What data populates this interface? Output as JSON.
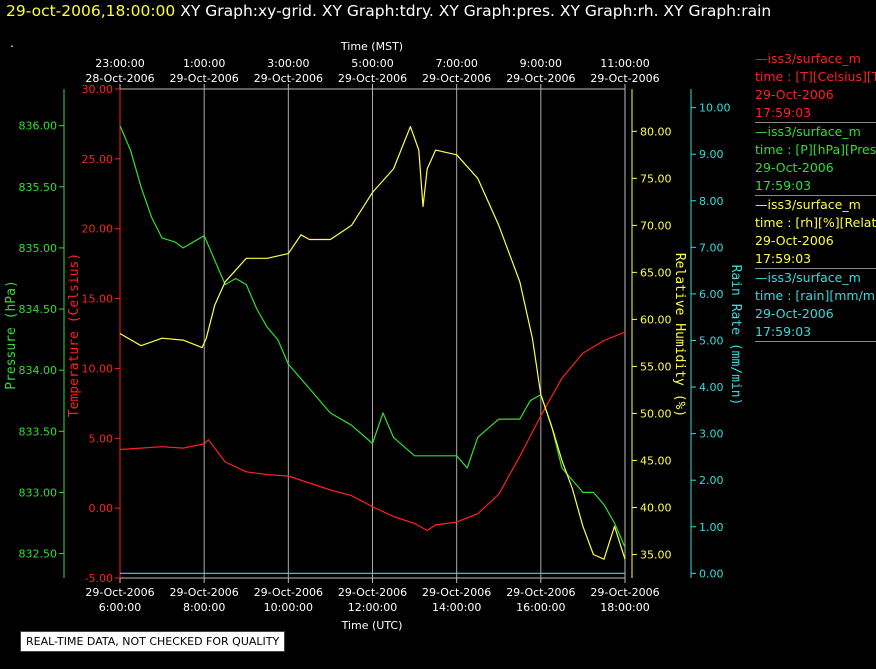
{
  "header": {
    "timestamp": "29-oct-2006,18:00:00",
    "graph_titles": "XY Graph:xy-grid.  XY Graph:tdry.  XY Graph:pres.  XY Graph:rh.  XY Graph:rain"
  },
  "marker": ".",
  "quality_note": "REAL-TIME DATA, NOT CHECKED FOR QUALITY",
  "legend": [
    {
      "line1": "—iss3/surface_m",
      "line2": "time : [T][Celsius][T",
      "line3": "29-Oct-2006",
      "line4": "17:59:03",
      "color": "#ff2020"
    },
    {
      "line1": "—iss3/surface_m",
      "line2": "time : [P][hPa][Pres",
      "line3": "29-Oct-2006",
      "line4": "17:59:03",
      "color": "#33dd33"
    },
    {
      "line1": "—iss3/surface_m",
      "line2": "time : [rh][%][Relativ",
      "line3": "29-Oct-2006",
      "line4": "17:59:03",
      "color": "#ffff44"
    },
    {
      "line1": "—iss3/surface_m",
      "line2": "time : [rain][mm/mir",
      "line3": "29-Oct-2006",
      "line4": "17:59:03",
      "color": "#33dddd"
    }
  ],
  "chart_data": {
    "type": "line",
    "top_axis_label": "Time (MST)",
    "bottom_axis_label": "Time (UTC)",
    "x_ticks_utc": [
      {
        "time": "6:00:00",
        "date": "29-Oct-2006"
      },
      {
        "time": "8:00:00",
        "date": "29-Oct-2006"
      },
      {
        "time": "10:00:00",
        "date": "29-Oct-2006"
      },
      {
        "time": "12:00:00",
        "date": "29-Oct-2006"
      },
      {
        "time": "14:00:00",
        "date": "29-Oct-2006"
      },
      {
        "time": "16:00:00",
        "date": "29-Oct-2006"
      },
      {
        "time": "18:00:00",
        "date": "29-Oct-2006"
      }
    ],
    "x_ticks_mst": [
      {
        "time": "23:00:00",
        "date": "28-Oct-2006"
      },
      {
        "time": "1:00:00",
        "date": "29-Oct-2006"
      },
      {
        "time": "3:00:00",
        "date": "29-Oct-2006"
      },
      {
        "time": "5:00:00",
        "date": "29-Oct-2006"
      },
      {
        "time": "7:00:00",
        "date": "29-Oct-2006"
      },
      {
        "time": "9:00:00",
        "date": "29-Oct-2006"
      },
      {
        "time": "11:00:00",
        "date": "29-Oct-2006"
      }
    ],
    "x_range_utc_hours": [
      6,
      18
    ],
    "grid": true,
    "axes": {
      "temperature": {
        "label": "Temperature (Celsius)",
        "range": [
          -5,
          30
        ],
        "ticks": [
          "30.00",
          "25.00",
          "20.00",
          "15.00",
          "10.00",
          "5.00",
          "0.00",
          "-5.00"
        ],
        "color": "#ff2020"
      },
      "pressure": {
        "label": "Pressure (hPa)",
        "range": [
          832.3,
          836.3
        ],
        "ticks": [
          "836.00",
          "835.50",
          "835.00",
          "834.50",
          "834.00",
          "833.50",
          "833.00",
          "832.50"
        ],
        "color": "#33dd33"
      },
      "humidity": {
        "label": "Relative Humidity (%)",
        "range": [
          32.5,
          84.5
        ],
        "ticks": [
          "80.00",
          "75.00",
          "70.00",
          "65.00",
          "60.00",
          "55.00",
          "50.00",
          "45.00",
          "40.00",
          "35.00"
        ],
        "color": "#ffff44"
      },
      "rain": {
        "label": "Rain Rate (mm/min)",
        "range": [
          -0.1,
          10.4
        ],
        "ticks": [
          "10.00",
          "9.00",
          "8.00",
          "7.00",
          "6.00",
          "5.00",
          "4.00",
          "3.00",
          "2.00",
          "1.00",
          "0.00"
        ],
        "color": "#33dddd"
      }
    },
    "series": [
      {
        "name": "Temperature",
        "axis": "temperature",
        "color": "#ff2020",
        "x": [
          6.0,
          6.5,
          7.0,
          7.5,
          8.0,
          8.1,
          8.5,
          9.0,
          9.5,
          10.0,
          10.5,
          11.0,
          11.5,
          12.0,
          12.5,
          13.0,
          13.3,
          13.5,
          14.0,
          14.5,
          15.0,
          15.5,
          16.0,
          16.5,
          17.0,
          17.5,
          18.0
        ],
        "y": [
          4.2,
          4.3,
          4.4,
          4.3,
          4.6,
          4.9,
          3.3,
          2.6,
          2.4,
          2.3,
          1.8,
          1.3,
          0.9,
          0.1,
          -0.6,
          -1.1,
          -1.6,
          -1.2,
          -1.0,
          -0.4,
          1.0,
          3.7,
          6.6,
          9.3,
          11.1,
          12.0,
          12.6
        ]
      },
      {
        "name": "Pressure",
        "axis": "pressure",
        "color": "#33dd33",
        "x": [
          6.0,
          6.25,
          6.5,
          6.75,
          7.0,
          7.3,
          7.5,
          7.75,
          8.0,
          8.25,
          8.5,
          8.75,
          9.0,
          9.25,
          9.5,
          9.75,
          10.0,
          10.5,
          11.0,
          11.5,
          12.0,
          12.25,
          12.5,
          13.0,
          13.5,
          14.0,
          14.25,
          14.5,
          15.0,
          15.5,
          15.75,
          16.0,
          16.25,
          16.5,
          17.0,
          17.25,
          17.5,
          17.75,
          18.0
        ],
        "y": [
          836.0,
          835.8,
          835.5,
          835.25,
          835.08,
          835.05,
          835.0,
          835.05,
          835.1,
          834.9,
          834.7,
          834.75,
          834.7,
          834.5,
          834.35,
          834.25,
          834.05,
          833.85,
          833.65,
          833.55,
          833.4,
          833.65,
          833.45,
          833.3,
          833.3,
          833.3,
          833.2,
          833.45,
          833.6,
          833.6,
          833.75,
          833.8,
          833.55,
          833.2,
          833.0,
          833.0,
          832.9,
          832.75,
          832.55
        ]
      },
      {
        "name": "Relative Humidity",
        "axis": "humidity",
        "color": "#ffff44",
        "x": [
          6.0,
          6.5,
          7.0,
          7.5,
          7.95,
          8.05,
          8.25,
          8.5,
          9.0,
          9.5,
          10.0,
          10.3,
          10.5,
          11.0,
          11.5,
          12.0,
          12.5,
          12.9,
          13.1,
          13.2,
          13.3,
          13.5,
          14.0,
          14.5,
          15.0,
          15.5,
          15.8,
          16.0,
          16.3,
          16.5,
          16.75,
          17.0,
          17.25,
          17.5,
          17.75,
          18.0
        ],
        "y": [
          58.5,
          57.2,
          58.0,
          57.8,
          57.0,
          58.0,
          61.5,
          64.0,
          66.5,
          66.5,
          67.0,
          69.0,
          68.5,
          68.5,
          70.0,
          73.5,
          76.0,
          80.5,
          78.0,
          72.0,
          76.0,
          78.0,
          77.5,
          75.0,
          70.0,
          64.0,
          58.0,
          52.0,
          48.0,
          45.0,
          42.0,
          38.0,
          35.0,
          34.5,
          38.0,
          34.5
        ]
      },
      {
        "name": "Rain Rate",
        "axis": "rain",
        "color": "#33dddd",
        "x": [
          6.0,
          18.0
        ],
        "y": [
          0.0,
          0.0
        ]
      }
    ]
  }
}
